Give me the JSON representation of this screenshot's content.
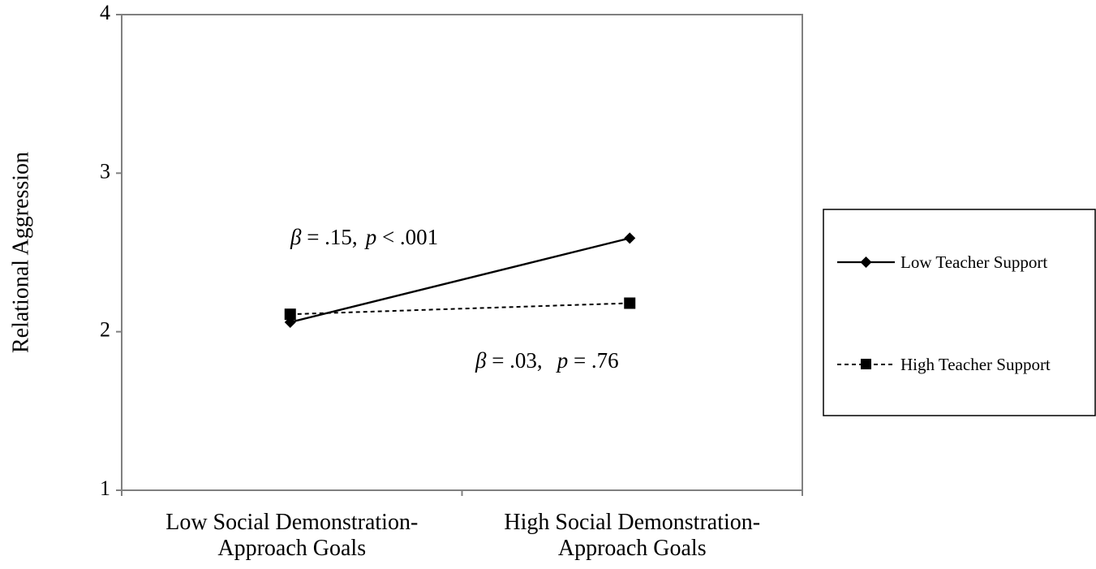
{
  "chart_data": {
    "type": "line",
    "categories": [
      "Low Social Demonstration-Approach Goals",
      "High Social Demonstration-Approach Goals"
    ],
    "category_lines": [
      [
        "Low Social Demonstration-",
        "Approach Goals"
      ],
      [
        "High Social Demonstration-",
        "Approach Goals"
      ]
    ],
    "ylabel": "Relational Aggression",
    "ylim": [
      1,
      4
    ],
    "yticks": [
      1,
      2,
      3,
      4
    ],
    "grid": false,
    "legend_position": "right",
    "series": [
      {
        "name": "Low Teacher Support",
        "values": [
          2.06,
          2.59
        ],
        "line_style": "solid",
        "marker": "diamond",
        "color": "#000000"
      },
      {
        "name": "High Teacher Support",
        "values": [
          2.11,
          2.18
        ],
        "line_style": "dashed",
        "marker": "square",
        "color": "#000000"
      }
    ],
    "annotations": [
      {
        "beta_symbol": "β",
        "beta_text": " = .15,",
        "p_symbol": "p",
        "p_text": " < .001"
      },
      {
        "beta_symbol": "β",
        "beta_text": " = .03,",
        "p_symbol": "p",
        "p_text": " = .76"
      }
    ]
  }
}
